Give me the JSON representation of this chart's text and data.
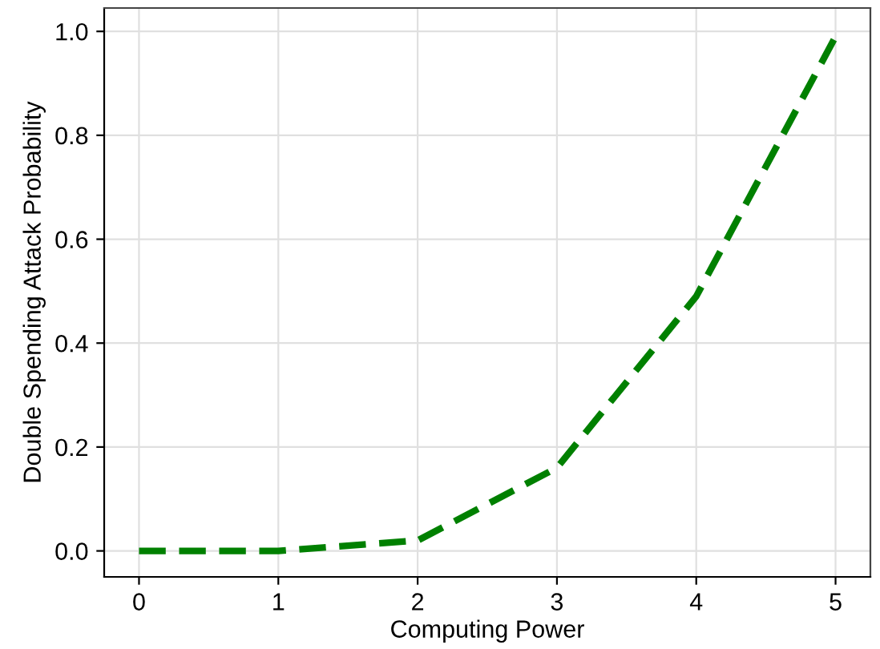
{
  "chart_data": {
    "type": "line",
    "xlabel": "Computing Power",
    "ylabel": "Double Spending Attack Probability",
    "x": [
      0,
      1,
      2,
      3,
      4,
      5
    ],
    "series": [
      {
        "color": "#008000",
        "values": [
          0,
          0,
          0.02,
          0.16,
          0.49,
          0.99
        ]
      }
    ],
    "xlim": [
      -0.25,
      5.25
    ],
    "ylim": [
      -0.05,
      1.045
    ],
    "xticks": [
      0,
      1,
      2,
      3,
      4,
      5
    ],
    "yticks": [
      {
        "value": 0,
        "label": "0.0"
      },
      {
        "value": 0.2,
        "label": "0.2"
      },
      {
        "value": 0.4,
        "label": "0.4"
      },
      {
        "value": 0.6,
        "label": "0.6"
      },
      {
        "value": 0.8,
        "label": "0.8"
      },
      {
        "value": 1,
        "label": "1.0"
      }
    ],
    "grid": true,
    "line_style": "dashed",
    "marker": "none",
    "legend": false
  }
}
